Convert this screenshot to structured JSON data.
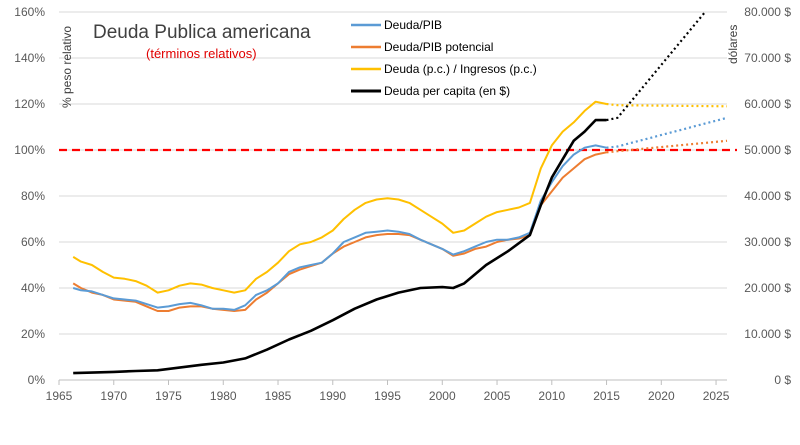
{
  "chart_data": {
    "type": "line",
    "title": "Deuda Publica americana",
    "subtitle": "(términos relativos)",
    "ylabel_left": "% peso relativo",
    "ylabel_right": "dólares",
    "xlim": [
      1965,
      2026
    ],
    "ylim_left": [
      0,
      160
    ],
    "ylim_right": [
      0,
      80000
    ],
    "x_ticks": [
      "1965",
      "1970",
      "1975",
      "1980",
      "1985",
      "1990",
      "1995",
      "2000",
      "2005",
      "2010",
      "2015",
      "2020",
      "2025"
    ],
    "y_left_ticks": [
      "0%",
      "20%",
      "40%",
      "60%",
      "80%",
      "100%",
      "120%",
      "140%",
      "160%"
    ],
    "y_right_ticks": [
      "0 $",
      "10.000 $",
      "20.000 $",
      "30.000 $",
      "40.000 $",
      "50.000 $",
      "60.000 $",
      "70.000 $",
      "80.000 $"
    ],
    "grid": true,
    "legend_position": "top-center",
    "reference_line": {
      "value": 100,
      "axis": "left",
      "color": "#ff0000",
      "style": "dashed"
    },
    "series": [
      {
        "name": "Deuda/PIB",
        "axis": "left",
        "color": "#5b9bd5",
        "points": [
          [
            1966.3,
            40
          ],
          [
            1967,
            39
          ],
          [
            1968,
            38.5
          ],
          [
            1969,
            37
          ],
          [
            1970,
            35.5
          ],
          [
            1971,
            35
          ],
          [
            1972,
            34.5
          ],
          [
            1973,
            33
          ],
          [
            1974,
            31.5
          ],
          [
            1975,
            32
          ],
          [
            1976,
            33
          ],
          [
            1977,
            33.5
          ],
          [
            1978,
            32.5
          ],
          [
            1979,
            31
          ],
          [
            1980,
            31
          ],
          [
            1981,
            30.5
          ],
          [
            1982,
            32.5
          ],
          [
            1983,
            37
          ],
          [
            1984,
            39
          ],
          [
            1985,
            42
          ],
          [
            1986,
            47
          ],
          [
            1987,
            49
          ],
          [
            1988,
            50
          ],
          [
            1989,
            51
          ],
          [
            1990,
            55
          ],
          [
            1991,
            60
          ],
          [
            1992,
            62
          ],
          [
            1993,
            64
          ],
          [
            1994,
            64.5
          ],
          [
            1995,
            65
          ],
          [
            1996,
            64.5
          ],
          [
            1997,
            63.5
          ],
          [
            1998,
            61
          ],
          [
            1999,
            59
          ],
          [
            2000,
            57
          ],
          [
            2001,
            54.5
          ],
          [
            2002,
            56
          ],
          [
            2003,
            58
          ],
          [
            2004,
            60
          ],
          [
            2005,
            61
          ],
          [
            2006,
            61
          ],
          [
            2007,
            62
          ],
          [
            2008,
            64
          ],
          [
            2009,
            78
          ],
          [
            2010,
            86
          ],
          [
            2011,
            93
          ],
          [
            2012,
            98
          ],
          [
            2013,
            101
          ],
          [
            2014,
            102
          ],
          [
            2015,
            101
          ]
        ],
        "forecast": [
          [
            2016,
            101.5
          ],
          [
            2026,
            114
          ]
        ]
      },
      {
        "name": "Deuda/PIB potencial",
        "axis": "left",
        "color": "#ed7d31",
        "points": [
          [
            1966.3,
            42
          ],
          [
            1967,
            40
          ],
          [
            1968,
            38
          ],
          [
            1969,
            37
          ],
          [
            1970,
            35
          ],
          [
            1971,
            34.5
          ],
          [
            1972,
            34
          ],
          [
            1973,
            32
          ],
          [
            1974,
            30
          ],
          [
            1975,
            30
          ],
          [
            1976,
            31.5
          ],
          [
            1977,
            32
          ],
          [
            1978,
            32
          ],
          [
            1979,
            31
          ],
          [
            1980,
            30.5
          ],
          [
            1981,
            30
          ],
          [
            1982,
            30.5
          ],
          [
            1983,
            35
          ],
          [
            1984,
            38
          ],
          [
            1985,
            42
          ],
          [
            1986,
            46
          ],
          [
            1987,
            48
          ],
          [
            1988,
            49.5
          ],
          [
            1989,
            51
          ],
          [
            1990,
            55
          ],
          [
            1991,
            58
          ],
          [
            1992,
            60
          ],
          [
            1993,
            62
          ],
          [
            1994,
            63
          ],
          [
            1995,
            63.5
          ],
          [
            1996,
            63.5
          ],
          [
            1997,
            63
          ],
          [
            1998,
            61
          ],
          [
            1999,
            59
          ],
          [
            2000,
            57
          ],
          [
            2001,
            54
          ],
          [
            2002,
            55
          ],
          [
            2003,
            57
          ],
          [
            2004,
            58
          ],
          [
            2005,
            60
          ],
          [
            2006,
            61
          ],
          [
            2007,
            61.5
          ],
          [
            2008,
            63
          ],
          [
            2009,
            76
          ],
          [
            2010,
            82
          ],
          [
            2011,
            88
          ],
          [
            2012,
            92
          ],
          [
            2013,
            96
          ],
          [
            2014,
            98
          ],
          [
            2015,
            99
          ]
        ],
        "forecast": [
          [
            2016,
            99.5
          ],
          [
            2026,
            104
          ]
        ]
      },
      {
        "name": "Deuda (p.c.) / Ingresos (p.c.)",
        "axis": "left",
        "color": "#ffc000",
        "points": [
          [
            1966.3,
            53.5
          ],
          [
            1967,
            51.5
          ],
          [
            1968,
            50
          ],
          [
            1969,
            47
          ],
          [
            1970,
            44.5
          ],
          [
            1971,
            44
          ],
          [
            1972,
            43
          ],
          [
            1973,
            41
          ],
          [
            1974,
            38
          ],
          [
            1975,
            39
          ],
          [
            1976,
            41
          ],
          [
            1977,
            42
          ],
          [
            1978,
            41.5
          ],
          [
            1979,
            40
          ],
          [
            1980,
            39
          ],
          [
            1981,
            38
          ],
          [
            1982,
            39
          ],
          [
            1983,
            44
          ],
          [
            1984,
            47
          ],
          [
            1985,
            51
          ],
          [
            1986,
            56
          ],
          [
            1987,
            59
          ],
          [
            1988,
            60
          ],
          [
            1989,
            62
          ],
          [
            1990,
            65
          ],
          [
            1991,
            70
          ],
          [
            1992,
            74
          ],
          [
            1993,
            77
          ],
          [
            1994,
            78.5
          ],
          [
            1995,
            79
          ],
          [
            1996,
            78.5
          ],
          [
            1997,
            77
          ],
          [
            1998,
            74
          ],
          [
            1999,
            71
          ],
          [
            2000,
            68
          ],
          [
            2001,
            64
          ],
          [
            2002,
            65
          ],
          [
            2003,
            68
          ],
          [
            2004,
            71
          ],
          [
            2005,
            73
          ],
          [
            2006,
            74
          ],
          [
            2007,
            75
          ],
          [
            2008,
            77
          ],
          [
            2009,
            92
          ],
          [
            2010,
            102
          ],
          [
            2011,
            108
          ],
          [
            2012,
            112
          ],
          [
            2013,
            117
          ],
          [
            2014,
            121
          ],
          [
            2015,
            120
          ]
        ],
        "forecast": [
          [
            2016,
            119.5
          ],
          [
            2026,
            119
          ]
        ]
      },
      {
        "name": "Deuda per capita (en $)",
        "axis": "right",
        "color": "#000000",
        "points": [
          [
            1966.3,
            1500
          ],
          [
            1968,
            1600
          ],
          [
            1970,
            1750
          ],
          [
            1972,
            1950
          ],
          [
            1974,
            2100
          ],
          [
            1976,
            2700
          ],
          [
            1978,
            3300
          ],
          [
            1980,
            3800
          ],
          [
            1982,
            4700
          ],
          [
            1984,
            6600
          ],
          [
            1986,
            8800
          ],
          [
            1988,
            10700
          ],
          [
            1990,
            13000
          ],
          [
            1992,
            15500
          ],
          [
            1994,
            17500
          ],
          [
            1996,
            19000
          ],
          [
            1998,
            20000
          ],
          [
            2000,
            20200
          ],
          [
            2001,
            20000
          ],
          [
            2002,
            21000
          ],
          [
            2004,
            25000
          ],
          [
            2006,
            28000
          ],
          [
            2008,
            31500
          ],
          [
            2009,
            38000
          ],
          [
            2010,
            44000
          ],
          [
            2011,
            48000
          ],
          [
            2012,
            52000
          ],
          [
            2013,
            54000
          ],
          [
            2014,
            56500
          ],
          [
            2015,
            56500
          ]
        ],
        "forecast": [
          [
            2016,
            57000
          ],
          [
            2024,
            80000
          ]
        ]
      }
    ]
  }
}
